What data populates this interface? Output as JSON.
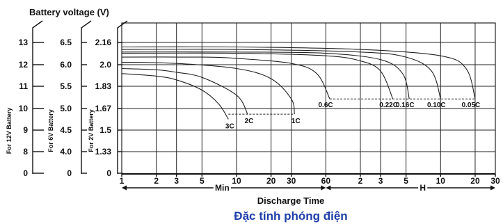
{
  "chart_data": {
    "type": "line",
    "title": "Battery voltage (V)",
    "xlabel": "Discharge Time",
    "caption": "Đặc tính phóng điện",
    "x_scale": "log",
    "x_unit": "minutes",
    "xlim": [
      1,
      1800
    ],
    "ylim": [
      0.7,
      2.2
    ],
    "grid": true,
    "x_ticks_min": [
      {
        "v": 1,
        "label": "1"
      },
      {
        "v": 2,
        "label": "2"
      },
      {
        "v": 3,
        "label": "3"
      },
      {
        "v": 5,
        "label": "5"
      },
      {
        "v": 10,
        "label": "10"
      },
      {
        "v": 20,
        "label": "20"
      },
      {
        "v": 30,
        "label": "30"
      },
      {
        "v": 60,
        "label": "60"
      }
    ],
    "x_ticks_h": [
      {
        "v": 120,
        "label": "2"
      },
      {
        "v": 180,
        "label": "3"
      },
      {
        "v": 300,
        "label": "5"
      },
      {
        "v": 600,
        "label": "10"
      },
      {
        "v": 1200,
        "label": "20"
      },
      {
        "v": 1800,
        "label": "30"
      }
    ],
    "min_label": "Min",
    "h_label": "H",
    "y_axes": [
      {
        "label": "For 12V Battery",
        "ticks": [
          "13",
          "12",
          "11",
          "10",
          "9",
          "8",
          "0"
        ]
      },
      {
        "label": "For 6V Battery",
        "ticks": [
          "6.5",
          "6.0",
          "5.5",
          "5.0",
          "4.5",
          "4.0",
          "0"
        ]
      },
      {
        "label": "For 2V Battery",
        "ticks": [
          "2.16",
          "2.0",
          "1.83",
          "1.67",
          "1.5",
          "1.33",
          "0"
        ]
      }
    ],
    "series": [
      {
        "name": "3C",
        "x": [
          1,
          2,
          3,
          5,
          7,
          8.5
        ],
        "y": [
          1.93,
          1.91,
          1.88,
          1.8,
          1.69,
          1.57
        ]
      },
      {
        "name": "2C",
        "x": [
          1,
          2,
          3,
          5,
          10,
          12.5
        ],
        "y": [
          1.97,
          1.96,
          1.94,
          1.9,
          1.76,
          1.61
        ]
      },
      {
        "name": "1C",
        "x": [
          1,
          3,
          10,
          20,
          30,
          32
        ],
        "y": [
          2.02,
          2.01,
          1.97,
          1.89,
          1.73,
          1.61
        ]
      },
      {
        "name": "0.6C",
        "x": [
          1,
          5,
          10,
          30,
          50,
          65
        ],
        "y": [
          2.06,
          2.06,
          2.05,
          2.01,
          1.93,
          1.73
        ]
      },
      {
        "name": "0.22C",
        "x": [
          1,
          10,
          60,
          120,
          180,
          230
        ],
        "y": [
          2.09,
          2.09,
          2.07,
          2.03,
          1.95,
          1.73
        ]
      },
      {
        "name": "0.16C",
        "x": [
          1,
          10,
          60,
          180,
          280,
          320
        ],
        "y": [
          2.1,
          2.1,
          2.09,
          2.04,
          1.93,
          1.73
        ]
      },
      {
        "name": "0.10C",
        "x": [
          1,
          10,
          120,
          300,
          500,
          600
        ],
        "y": [
          2.12,
          2.12,
          2.1,
          2.06,
          1.95,
          1.73
        ]
      },
      {
        "name": "0.05C",
        "x": [
          1,
          10,
          120,
          600,
          1000,
          1200
        ],
        "y": [
          2.14,
          2.14,
          2.12,
          2.07,
          1.97,
          1.73
        ]
      }
    ],
    "cutoff_lines": [
      {
        "y": 1.61,
        "from": 8.5,
        "to": 32
      },
      {
        "y": 1.73,
        "from": 65,
        "to": 1200
      }
    ]
  }
}
